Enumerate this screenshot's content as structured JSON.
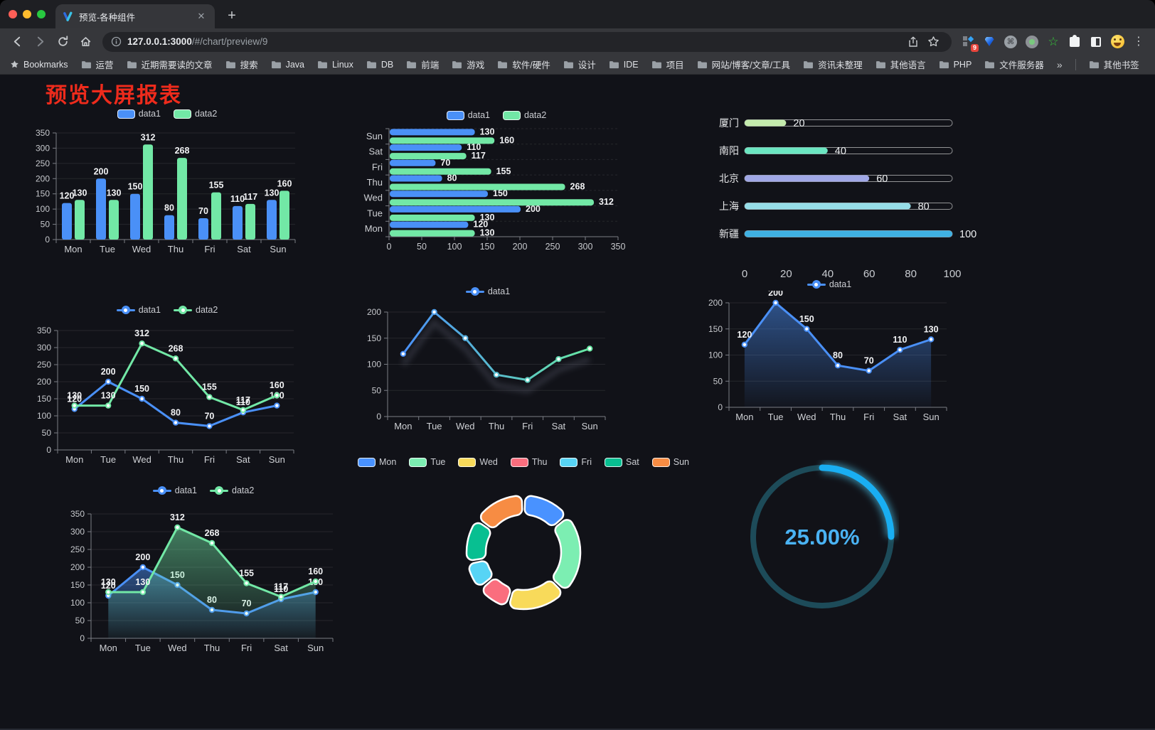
{
  "browser": {
    "tab_title": "预览-各种组件",
    "new_tab_button": "+",
    "url_host": "127.0.0.1:3000",
    "url_path": "/#/chart/preview/9",
    "bookmarks_label": "Bookmarks",
    "bookmarks": [
      "运营",
      "近期需要读的文章",
      "搜索",
      "Java",
      "Linux",
      "DB",
      "前端",
      "游戏",
      "软件/硬件",
      "设计",
      "IDE",
      "项目",
      "网站/博客/文章/工具",
      "资讯未整理",
      "其他语言",
      "PHP",
      "文件服务器"
    ],
    "bookmarks_overflow": "»",
    "other_bookmarks": "其他书签",
    "extension_badge": "9"
  },
  "page": {
    "title": "预览大屏报表"
  },
  "chart_data": [
    {
      "id": "bar-vertical",
      "type": "bar",
      "target": "c0",
      "categories": [
        "Mon",
        "Tue",
        "Wed",
        "Thu",
        "Fri",
        "Sat",
        "Sun"
      ],
      "series": [
        {
          "name": "data1",
          "color": "#4a90f7",
          "values": [
            120,
            200,
            150,
            80,
            70,
            110,
            130
          ]
        },
        {
          "name": "data2",
          "color": "#72e8a6",
          "values": [
            130,
            130,
            312,
            268,
            155,
            117,
            160
          ]
        }
      ],
      "ylim": [
        0,
        350
      ],
      "ystep": 50,
      "grid": true,
      "legend_position": "top",
      "labels": true,
      "pad": [
        16,
        10,
        32,
        34
      ]
    },
    {
      "id": "bar-horizontal",
      "type": "hbar",
      "target": "c1",
      "categories": [
        "Mon",
        "Tue",
        "Wed",
        "Thu",
        "Fri",
        "Sat",
        "Sun"
      ],
      "series": [
        {
          "name": "data1",
          "color": "#4a90f7",
          "values": [
            120,
            200,
            150,
            80,
            70,
            110,
            130
          ]
        },
        {
          "name": "data2",
          "color": "#72e8a6",
          "values": [
            130,
            130,
            312,
            268,
            155,
            117,
            160
          ]
        }
      ],
      "xlim": [
        0,
        350
      ],
      "xstep": 50,
      "grid": true,
      "legend_position": "top",
      "labels": true,
      "pad": [
        8,
        22,
        32,
        42
      ]
    },
    {
      "id": "progress-bars",
      "type": "progress",
      "target": "c2",
      "items": [
        {
          "label": "厦门",
          "value": 20,
          "color": "#c4ebad"
        },
        {
          "label": "南阳",
          "value": 40,
          "color": "#6be6c1"
        },
        {
          "label": "北京",
          "value": 60,
          "color": "#a0a7e6"
        },
        {
          "label": "上海",
          "value": 80,
          "color": "#96dee8"
        },
        {
          "label": "新疆",
          "value": 100,
          "color": "#3fb1e3"
        }
      ],
      "xlim": [
        0,
        100
      ],
      "xticks": [
        0,
        20,
        40,
        60,
        80,
        100
      ]
    },
    {
      "id": "line-basic",
      "type": "line",
      "target": "c3",
      "categories": [
        "Mon",
        "Tue",
        "Wed",
        "Thu",
        "Fri",
        "Sat",
        "Sun"
      ],
      "series": [
        {
          "name": "data1",
          "color": "#4a90f7",
          "values": [
            120,
            200,
            150,
            80,
            70,
            110,
            130
          ]
        },
        {
          "name": "data2",
          "color": "#72e8a6",
          "values": [
            130,
            130,
            312,
            268,
            155,
            117,
            160
          ]
        }
      ],
      "ylim": [
        0,
        350
      ],
      "ystep": 50,
      "grid": true,
      "legend_position": "top",
      "labels": true,
      "pad": [
        20,
        12,
        30,
        36
      ]
    },
    {
      "id": "line-gradient",
      "type": "line",
      "target": "c4",
      "categories": [
        "Mon",
        "Tue",
        "Wed",
        "Thu",
        "Fri",
        "Sat",
        "Sun"
      ],
      "series": [
        {
          "name": "data1",
          "gradient": [
            "#4a90f7",
            "#67e8a3"
          ],
          "color": "#4a90f7",
          "values": [
            120,
            200,
            150,
            80,
            70,
            110,
            130
          ],
          "shadow": true
        }
      ],
      "ylim": [
        0,
        200
      ],
      "ystep": 50,
      "grid": true,
      "legend_position": "top",
      "labels": false,
      "pad": [
        20,
        16,
        28,
        40
      ]
    },
    {
      "id": "line-area",
      "type": "line",
      "target": "c5",
      "categories": [
        "Mon",
        "Tue",
        "Wed",
        "Thu",
        "Fri",
        "Sat",
        "Sun"
      ],
      "series": [
        {
          "name": "data1",
          "color": "#4a90f7",
          "values": [
            120,
            200,
            150,
            80,
            70,
            110,
            130
          ],
          "area": true
        }
      ],
      "ylim": [
        0,
        200
      ],
      "ystep": 50,
      "grid": true,
      "legend_position": "top",
      "labels": true,
      "pad": [
        17,
        16,
        26,
        40
      ]
    },
    {
      "id": "line-area-double",
      "type": "line",
      "target": "c6",
      "categories": [
        "Mon",
        "Tue",
        "Wed",
        "Thu",
        "Fri",
        "Sat",
        "Sun"
      ],
      "series": [
        {
          "name": "data1",
          "color": "#4a90f7",
          "values": [
            120,
            200,
            150,
            80,
            70,
            110,
            130
          ],
          "area": true
        },
        {
          "name": "data2",
          "color": "#72e8a6",
          "values": [
            130,
            130,
            312,
            268,
            155,
            117,
            160
          ],
          "area": true
        }
      ],
      "ylim": [
        0,
        350
      ],
      "ystep": 50,
      "grid": true,
      "legend_position": "top",
      "labels": true,
      "pad": [
        24,
        14,
        31,
        38
      ]
    },
    {
      "id": "donut",
      "type": "pie",
      "target": "c7",
      "categories": [
        "Mon",
        "Tue",
        "Wed",
        "Thu",
        "Fri",
        "Sat",
        "Sun"
      ],
      "values": [
        120,
        200,
        150,
        80,
        70,
        110,
        130
      ],
      "colors": [
        "#4992ff",
        "#7ceeb2",
        "#f8da5a",
        "#fa6e7e",
        "#57d4f5",
        "#08bf91",
        "#f78c43"
      ],
      "legend_position": "top",
      "inner_radius": 53,
      "outer_radius": 80,
      "border_color": "#ffffff"
    },
    {
      "id": "gauge",
      "type": "gauge",
      "target": "c8",
      "value": 25,
      "max": 100,
      "label": "25.00%",
      "color": "#19aef2",
      "track_color": "#1d4b59",
      "text_color": "#4ab3f4"
    }
  ]
}
